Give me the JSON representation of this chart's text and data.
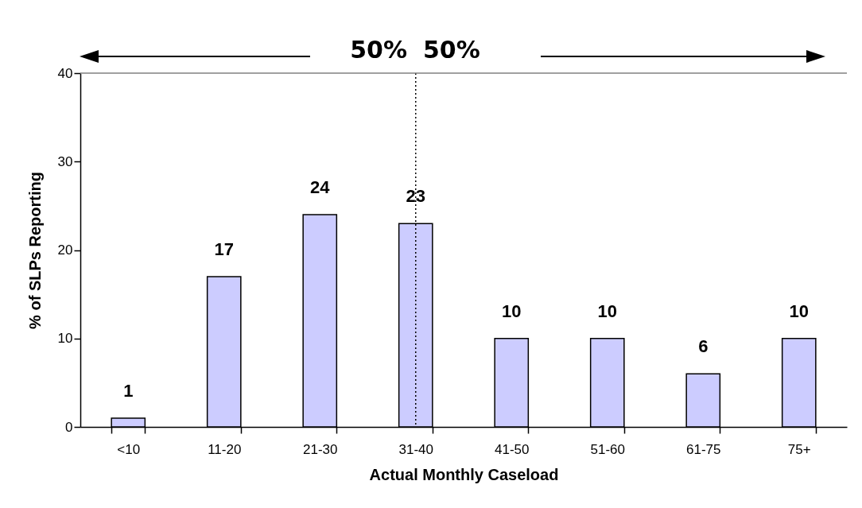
{
  "chart_data": {
    "type": "bar",
    "xlabel": "Actual Monthly Caseload",
    "ylabel": "% of SLPs Reporting",
    "categories": [
      "<10",
      "11-20",
      "21-30",
      "31-40",
      "41-50",
      "51-60",
      "61-75",
      "75+"
    ],
    "values": [
      1,
      17,
      24,
      23,
      10,
      10,
      6,
      10
    ],
    "color": "#ccccff",
    "ylim": [
      0,
      40
    ],
    "yticks": [
      0,
      10,
      20,
      30,
      40
    ],
    "grid": false,
    "data_labels": true,
    "ref_lines": [
      {
        "axis": "x",
        "value": "31-40",
        "color": "#000000",
        "line_style": "dotted"
      },
      {
        "axis": "y",
        "value": 40,
        "color": "#808080",
        "line_style": "solid"
      }
    ],
    "annotations": [
      "50%",
      "50%"
    ]
  }
}
